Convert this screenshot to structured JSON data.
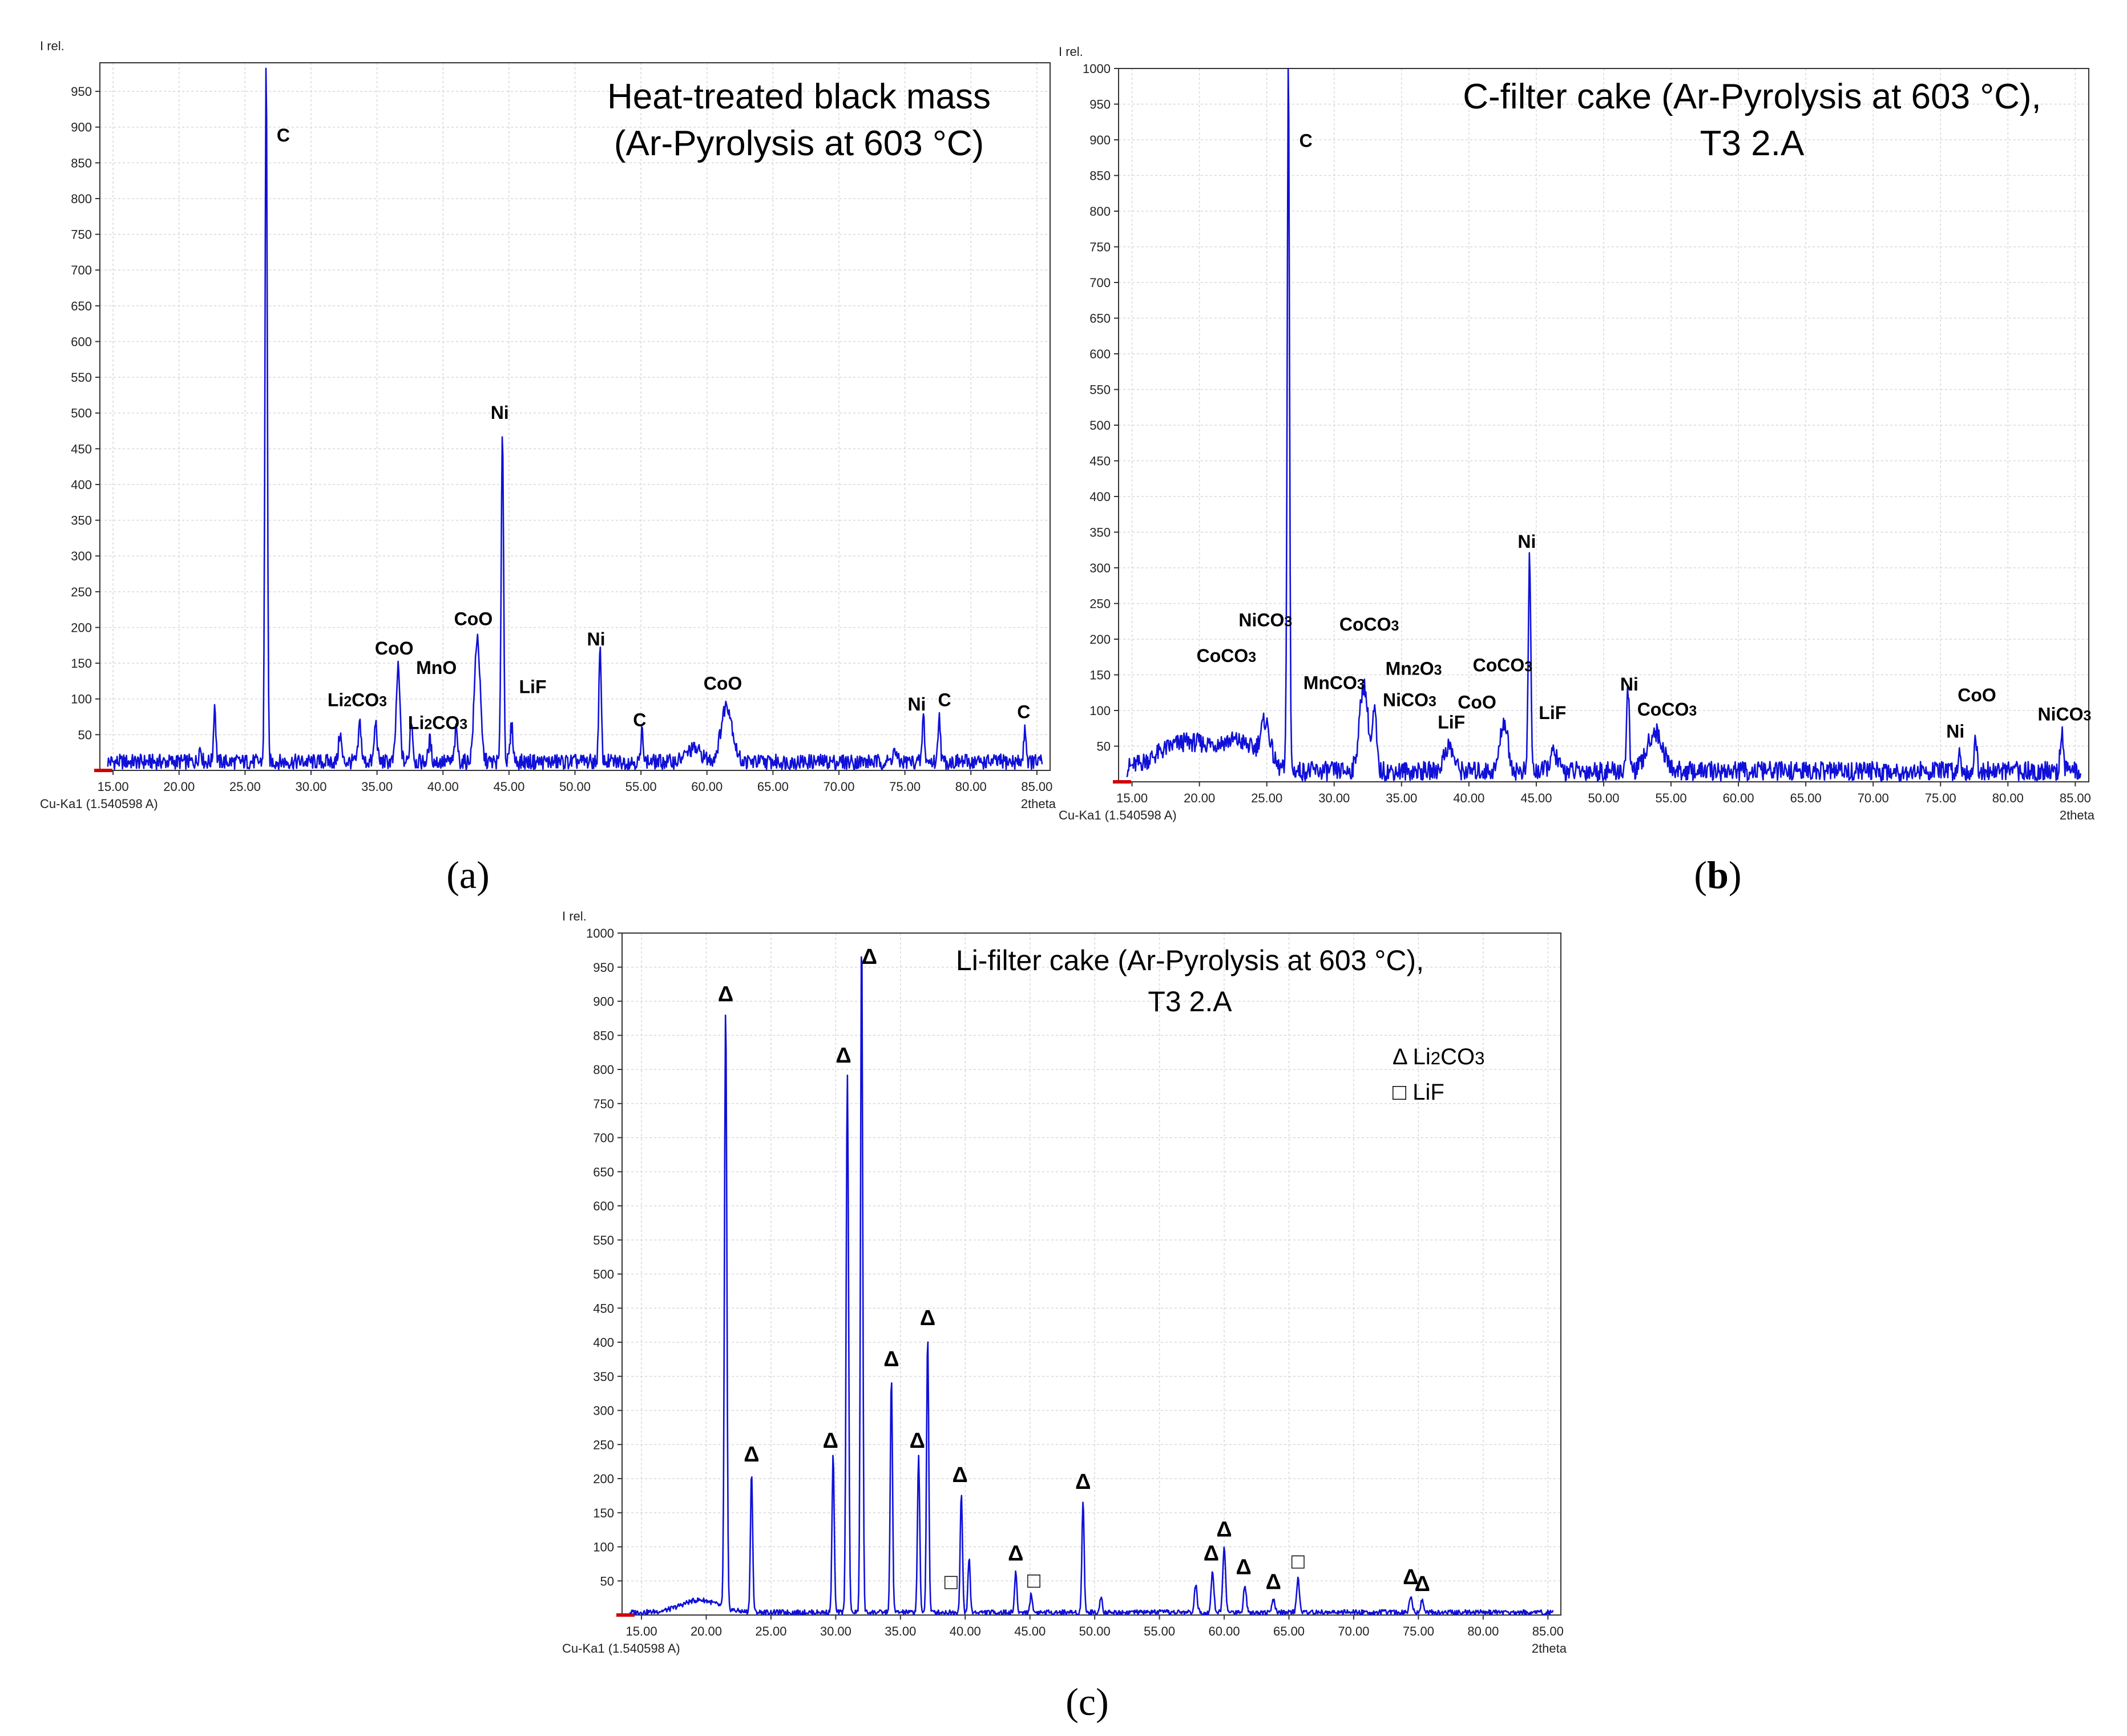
{
  "chart_data": [
    {
      "type": "line",
      "panel": "(a)",
      "caption_letter": "a",
      "title_lines": [
        "Heat-treated black mass",
        "(Ar-Pyrolysis at 603 °C)"
      ],
      "ylabel": "I rel.",
      "xlabel": "2theta",
      "source": "Cu-Ka1 (1.540598 A)",
      "xlim": [
        14,
        86
      ],
      "ylim": [
        0,
        990
      ],
      "xticks": [
        "15.00",
        "20.00",
        "25.00",
        "30.00",
        "35.00",
        "40.00",
        "45.00",
        "50.00",
        "55.00",
        "60.00",
        "65.00",
        "70.00",
        "75.00",
        "80.00",
        "85.00"
      ],
      "yticks": [
        "50",
        "100",
        "150",
        "200",
        "250",
        "300",
        "350",
        "400",
        "450",
        "500",
        "550",
        "600",
        "650",
        "700",
        "750",
        "800",
        "850",
        "900",
        "950"
      ],
      "baseline": 12,
      "peaks": [
        {
          "x": 21.6,
          "y": 20,
          "w": 0.15
        },
        {
          "x": 22.7,
          "y": 80,
          "w": 0.12
        },
        {
          "x": 26.6,
          "y": 990,
          "w": 0.12
        },
        {
          "x": 32.2,
          "y": 40,
          "w": 0.15
        },
        {
          "x": 33.7,
          "y": 55,
          "w": 0.15
        },
        {
          "x": 34.9,
          "y": 55,
          "w": 0.15
        },
        {
          "x": 36.6,
          "y": 130,
          "w": 0.2
        },
        {
          "x": 37.6,
          "y": 60,
          "w": 0.15
        },
        {
          "x": 39.0,
          "y": 30,
          "w": 0.15
        },
        {
          "x": 41.0,
          "y": 45,
          "w": 0.15
        },
        {
          "x": 42.6,
          "y": 175,
          "w": 0.3
        },
        {
          "x": 44.5,
          "y": 465,
          "w": 0.13
        },
        {
          "x": 45.2,
          "y": 50,
          "w": 0.15
        },
        {
          "x": 51.9,
          "y": 155,
          "w": 0.13
        },
        {
          "x": 55.1,
          "y": 45,
          "w": 0.12
        },
        {
          "x": 59.0,
          "y": 18,
          "w": 0.8
        },
        {
          "x": 61.5,
          "y": 80,
          "w": 0.6
        },
        {
          "x": 74.2,
          "y": 15,
          "w": 0.2
        },
        {
          "x": 76.4,
          "y": 65,
          "w": 0.12
        },
        {
          "x": 77.6,
          "y": 70,
          "w": 0.12
        },
        {
          "x": 84.1,
          "y": 50,
          "w": 0.12
        }
      ],
      "labels": [
        {
          "text": "C",
          "x": 27.9,
          "y": 880
        },
        {
          "text": "CoO",
          "x": 36.3,
          "y": 162
        },
        {
          "text": "MnO",
          "x": 39.5,
          "y": 135
        },
        {
          "text": "Li2CO3",
          "x": 33.5,
          "y": 90
        },
        {
          "text": "Li2CO3",
          "x": 39.6,
          "y": 58
        },
        {
          "text": "CoO",
          "x": 42.3,
          "y": 203
        },
        {
          "text": "Ni",
          "x": 44.3,
          "y": 492
        },
        {
          "text": "LiF",
          "x": 46.8,
          "y": 108
        },
        {
          "text": "Ni",
          "x": 51.6,
          "y": 175
        },
        {
          "text": "C",
          "x": 54.9,
          "y": 62
        },
        {
          "text": "CoO",
          "x": 61.2,
          "y": 113
        },
        {
          "text": "Ni",
          "x": 75.9,
          "y": 84
        },
        {
          "text": "C",
          "x": 78.0,
          "y": 90
        },
        {
          "text": "C",
          "x": 84.0,
          "y": 73
        }
      ]
    },
    {
      "type": "line",
      "panel": "(b)",
      "caption_letter": "b",
      "title_lines": [
        "C-filter cake (Ar-Pyrolysis at 603 °C),",
        "T3 2.A"
      ],
      "ylabel": "I rel.",
      "xlabel": "2theta",
      "source": "Cu-Ka1 (1.540598 A)",
      "xlim": [
        14,
        86
      ],
      "ylim": [
        0,
        1000
      ],
      "xticks": [
        "15.00",
        "20.00",
        "25.00",
        "30.00",
        "35.00",
        "40.00",
        "45.00",
        "50.00",
        "55.00",
        "60.00",
        "65.00",
        "70.00",
        "75.00",
        "80.00",
        "85.00"
      ],
      "yticks": [
        "50",
        "100",
        "150",
        "200",
        "250",
        "300",
        "350",
        "400",
        "450",
        "500",
        "550",
        "600",
        "650",
        "700",
        "750",
        "800",
        "850",
        "900",
        "950",
        "1000"
      ],
      "baseline": 15,
      "peaks": [
        {
          "x": 19.0,
          "y": 40,
          "w": 3.0
        },
        {
          "x": 23.0,
          "y": 35,
          "w": 2.0
        },
        {
          "x": 24.9,
          "y": 55,
          "w": 0.5
        },
        {
          "x": 26.6,
          "y": 1000,
          "w": 0.12
        },
        {
          "x": 32.2,
          "y": 120,
          "w": 0.45
        },
        {
          "x": 33.0,
          "y": 80,
          "w": 0.2
        },
        {
          "x": 38.5,
          "y": 35,
          "w": 0.5
        },
        {
          "x": 42.6,
          "y": 70,
          "w": 0.4
        },
        {
          "x": 44.5,
          "y": 305,
          "w": 0.13
        },
        {
          "x": 46.3,
          "y": 25,
          "w": 0.4
        },
        {
          "x": 51.8,
          "y": 110,
          "w": 0.15
        },
        {
          "x": 53.8,
          "y": 55,
          "w": 0.8
        },
        {
          "x": 76.4,
          "y": 25,
          "w": 0.15
        },
        {
          "x": 77.6,
          "y": 55,
          "w": 0.12
        },
        {
          "x": 84.0,
          "y": 60,
          "w": 0.15
        }
      ],
      "labels": [
        {
          "text": "C",
          "x": 27.9,
          "y": 890
        },
        {
          "text": "NiCO3",
          "x": 24.9,
          "y": 218
        },
        {
          "text": "CoCO3",
          "x": 22.0,
          "y": 168
        },
        {
          "text": "MnCO3",
          "x": 30.0,
          "y": 130
        },
        {
          "text": "CoCO3",
          "x": 32.6,
          "y": 212
        },
        {
          "text": "Mn2O3",
          "x": 35.9,
          "y": 150
        },
        {
          "text": "NiCO3",
          "x": 35.6,
          "y": 106
        },
        {
          "text": "CoCO3",
          "x": 42.5,
          "y": 155
        },
        {
          "text": "CoO",
          "x": 40.6,
          "y": 103
        },
        {
          "text": "LiF",
          "x": 38.7,
          "y": 75
        },
        {
          "text": "Ni",
          "x": 44.3,
          "y": 328
        },
        {
          "text": "LiF",
          "x": 46.2,
          "y": 88
        },
        {
          "text": "Ni",
          "x": 51.9,
          "y": 128
        },
        {
          "text": "CoCO3",
          "x": 54.7,
          "y": 93
        },
        {
          "text": "Ni",
          "x": 76.1,
          "y": 62
        },
        {
          "text": "CoO",
          "x": 77.7,
          "y": 113
        },
        {
          "text": "NiCO3",
          "x": 84.2,
          "y": 86
        }
      ]
    },
    {
      "type": "line",
      "panel": "(c)",
      "caption_letter": "c",
      "title_lines": [
        "Li-filter cake (Ar-Pyrolysis at 603 °C),",
        "T3 2.A"
      ],
      "ylabel": "I rel.",
      "xlabel": "2theta",
      "source": "Cu-Ka1 (1.540598 A)",
      "legend": [
        {
          "symbol": "Δ",
          "label": "Li2CO3"
        },
        {
          "symbol": "□",
          "label": "LiF"
        }
      ],
      "xlim": [
        13.5,
        86
      ],
      "ylim": [
        0,
        1000
      ],
      "xticks": [
        "15.00",
        "20.00",
        "25.00",
        "30.00",
        "35.00",
        "40.00",
        "45.00",
        "50.00",
        "55.00",
        "60.00",
        "65.00",
        "70.00",
        "75.00",
        "80.00",
        "85.00"
      ],
      "yticks": [
        "50",
        "100",
        "150",
        "200",
        "250",
        "300",
        "350",
        "400",
        "450",
        "500",
        "550",
        "600",
        "650",
        "700",
        "750",
        "800",
        "850",
        "900",
        "950",
        "1000"
      ],
      "baseline": 4,
      "peaks": [
        {
          "x": 19.5,
          "y": 18,
          "w": 2.0
        },
        {
          "x": 21.5,
          "y": 880,
          "w": 0.13
        },
        {
          "x": 23.5,
          "y": 205,
          "w": 0.12
        },
        {
          "x": 29.8,
          "y": 230,
          "w": 0.12
        },
        {
          "x": 30.9,
          "y": 790,
          "w": 0.13
        },
        {
          "x": 32.0,
          "y": 1000,
          "w": 0.12
        },
        {
          "x": 34.3,
          "y": 345,
          "w": 0.12
        },
        {
          "x": 36.4,
          "y": 230,
          "w": 0.12
        },
        {
          "x": 37.1,
          "y": 405,
          "w": 0.12
        },
        {
          "x": 39.7,
          "y": 175,
          "w": 0.12
        },
        {
          "x": 40.3,
          "y": 80,
          "w": 0.12
        },
        {
          "x": 43.9,
          "y": 60,
          "w": 0.12
        },
        {
          "x": 45.1,
          "y": 28,
          "w": 0.12
        },
        {
          "x": 49.1,
          "y": 165,
          "w": 0.12
        },
        {
          "x": 50.5,
          "y": 25,
          "w": 0.12
        },
        {
          "x": 57.8,
          "y": 40,
          "w": 0.15
        },
        {
          "x": 59.1,
          "y": 60,
          "w": 0.15
        },
        {
          "x": 60.0,
          "y": 95,
          "w": 0.15
        },
        {
          "x": 61.6,
          "y": 40,
          "w": 0.15
        },
        {
          "x": 63.8,
          "y": 18,
          "w": 0.15
        },
        {
          "x": 65.7,
          "y": 50,
          "w": 0.15
        },
        {
          "x": 74.4,
          "y": 25,
          "w": 0.15
        },
        {
          "x": 75.3,
          "y": 20,
          "w": 0.15
        }
      ],
      "labels": [
        {
          "text": "Δ",
          "x": 21.5,
          "y": 900
        },
        {
          "text": "Δ",
          "x": 23.5,
          "y": 225
        },
        {
          "text": "Δ",
          "x": 29.6,
          "y": 245
        },
        {
          "text": "Δ",
          "x": 30.6,
          "y": 810
        },
        {
          "text": "Δ",
          "x": 32.6,
          "y": 955
        },
        {
          "text": "Δ",
          "x": 34.3,
          "y": 365
        },
        {
          "text": "Δ",
          "x": 36.3,
          "y": 245
        },
        {
          "text": "Δ",
          "x": 37.1,
          "y": 425
        },
        {
          "text": "Δ",
          "x": 39.6,
          "y": 195
        },
        {
          "text": "Δ",
          "x": 43.9,
          "y": 80
        },
        {
          "text": "Δ",
          "x": 49.1,
          "y": 185
        },
        {
          "text": "Δ",
          "x": 59.0,
          "y": 80
        },
        {
          "text": "Δ",
          "x": 60.0,
          "y": 115
        },
        {
          "text": "Δ",
          "x": 61.5,
          "y": 60
        },
        {
          "text": "Δ",
          "x": 63.8,
          "y": 38
        },
        {
          "text": "Δ",
          "x": 74.4,
          "y": 45
        },
        {
          "text": "Δ",
          "x": 75.3,
          "y": 35
        },
        {
          "text": "□",
          "x": 38.9,
          "y": 38
        },
        {
          "text": "□",
          "x": 45.3,
          "y": 40
        },
        {
          "text": "□",
          "x": 65.7,
          "y": 68
        }
      ]
    }
  ]
}
